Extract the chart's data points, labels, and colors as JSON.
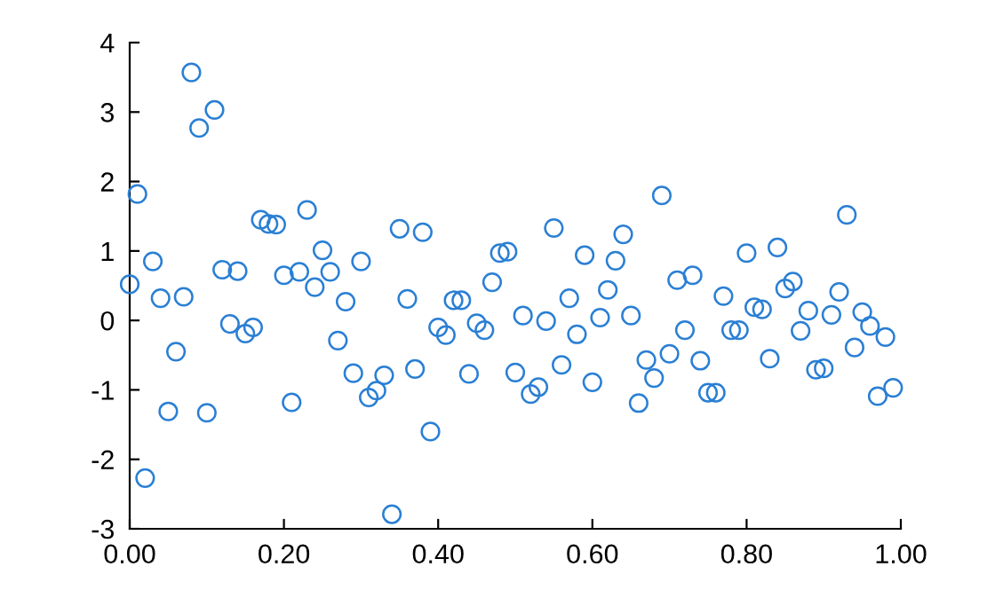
{
  "chart_data": {
    "type": "scatter",
    "marker": "circle",
    "grid": false,
    "xlim": [
      0,
      1
    ],
    "ylim": [
      -3,
      4
    ],
    "xticks": [
      {
        "value": 0,
        "label": "0.00"
      },
      {
        "value": 0.2,
        "label": "0.20"
      },
      {
        "value": 0.4,
        "label": "0.40"
      },
      {
        "value": 0.6,
        "label": "0.60"
      },
      {
        "value": 0.8,
        "label": "0.80"
      },
      {
        "value": 1,
        "label": "1.00"
      }
    ],
    "yticks": [
      -3,
      -2,
      -1,
      0,
      1,
      2,
      3,
      4
    ],
    "series": [
      {
        "color": "#2a7fd4",
        "x": [
          0.0,
          0.01,
          0.02,
          0.03,
          0.04,
          0.05,
          0.06,
          0.07,
          0.08,
          0.09,
          0.1,
          0.11,
          0.12,
          0.13,
          0.14,
          0.15,
          0.16,
          0.17,
          0.18,
          0.19,
          0.2,
          0.21,
          0.22,
          0.23,
          0.24,
          0.25,
          0.26,
          0.27,
          0.28,
          0.29,
          0.3,
          0.31,
          0.32,
          0.33,
          0.34,
          0.35,
          0.36,
          0.37,
          0.38,
          0.39,
          0.4,
          0.41,
          0.42,
          0.43,
          0.44,
          0.45,
          0.46,
          0.47,
          0.48,
          0.49,
          0.5,
          0.51,
          0.52,
          0.53,
          0.54,
          0.55,
          0.56,
          0.57,
          0.58,
          0.59,
          0.6,
          0.61,
          0.62,
          0.63,
          0.64,
          0.65,
          0.66,
          0.67,
          0.68,
          0.69,
          0.7,
          0.71,
          0.72,
          0.73,
          0.74,
          0.75,
          0.76,
          0.77,
          0.78,
          0.79,
          0.8,
          0.81,
          0.82,
          0.83,
          0.84,
          0.85,
          0.86,
          0.87,
          0.88,
          0.89,
          0.9,
          0.91,
          0.92,
          0.93,
          0.94,
          0.95,
          0.96,
          0.97,
          0.98,
          0.99
        ],
        "values": [
          0.52,
          1.82,
          -2.27,
          0.85,
          0.32,
          -1.31,
          -0.45,
          0.34,
          3.57,
          2.77,
          -1.33,
          3.03,
          0.73,
          -0.05,
          0.71,
          -0.19,
          -0.1,
          1.45,
          1.39,
          1.38,
          0.65,
          -1.18,
          0.7,
          1.59,
          0.48,
          1.01,
          0.7,
          -0.29,
          0.27,
          -0.76,
          0.85,
          -1.11,
          -1.01,
          -0.79,
          -2.79,
          1.32,
          0.31,
          -0.7,
          1.27,
          -1.6,
          -0.1,
          -0.21,
          0.29,
          0.29,
          -0.77,
          -0.04,
          -0.14,
          0.55,
          0.97,
          0.99,
          -0.75,
          0.07,
          -1.06,
          -0.96,
          -0.01,
          1.33,
          -0.64,
          0.32,
          -0.2,
          0.94,
          -0.89,
          0.04,
          0.44,
          0.86,
          1.24,
          0.07,
          -1.19,
          -0.57,
          -0.83,
          1.8,
          -0.48,
          0.58,
          -0.14,
          0.65,
          -0.58,
          -1.04,
          -1.04,
          0.35,
          -0.14,
          -0.14,
          0.97,
          0.19,
          0.16,
          -0.55,
          1.05,
          0.46,
          0.56,
          -0.15,
          0.14,
          -0.71,
          -0.69,
          0.08,
          0.41,
          1.52,
          -0.39,
          0.12,
          -0.08,
          -1.09,
          -0.24,
          -0.97
        ]
      }
    ]
  }
}
